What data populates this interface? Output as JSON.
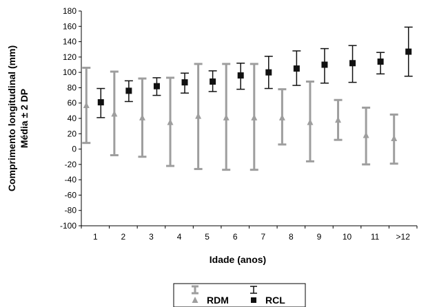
{
  "chart_data": {
    "type": "scatter",
    "title": "",
    "xlabel": "Idade (anos)",
    "ylabel_lines": [
      "Comprimento longitudinal (mm)",
      "Média ± 2 DP"
    ],
    "categories": [
      "1",
      "2",
      "3",
      "4",
      "5",
      "6",
      "7",
      "8",
      "9",
      "10",
      "11",
      ">12"
    ],
    "ylim": [
      -100,
      180
    ],
    "yticks": [
      -100,
      -80,
      -60,
      -40,
      -20,
      0,
      20,
      40,
      60,
      80,
      100,
      120,
      140,
      160,
      180
    ],
    "grid": false,
    "legend_position": "bottom-center",
    "series": [
      {
        "name": "RDM",
        "color": "#9e9e9e",
        "marker": "triangle",
        "mean": [
          57,
          46,
          41,
          35,
          43,
          41,
          41,
          41,
          35,
          38,
          18,
          14
        ],
        "upper": [
          106,
          101,
          92,
          93,
          111,
          111,
          111,
          78,
          88,
          64,
          54,
          45
        ],
        "lower": [
          8,
          -8,
          -10,
          -22,
          -26,
          -27,
          -27,
          6,
          -16,
          12,
          -20,
          -19
        ]
      },
      {
        "name": "RCL",
        "color": "#111111",
        "marker": "square",
        "mean": [
          61,
          76,
          82,
          87,
          88,
          96,
          100,
          105,
          110,
          112,
          114,
          127
        ],
        "upper": [
          79,
          89,
          93,
          99,
          102,
          112,
          121,
          128,
          131,
          135,
          126,
          159
        ],
        "lower": [
          41,
          62,
          70,
          73,
          75,
          78,
          79,
          83,
          86,
          87,
          98,
          95
        ]
      }
    ]
  }
}
